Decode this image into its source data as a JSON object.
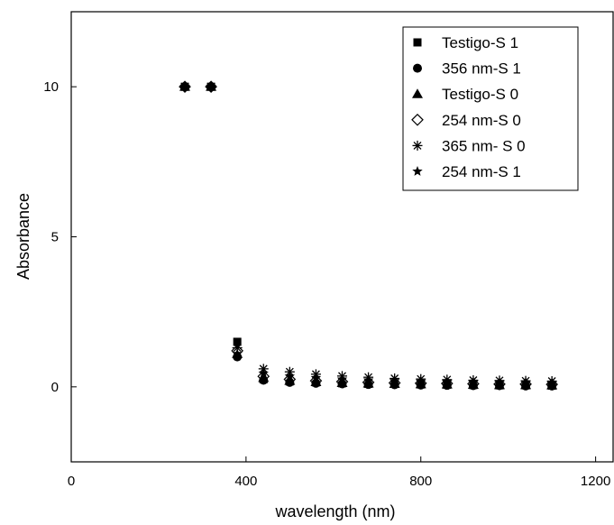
{
  "chart_data": {
    "type": "scatter",
    "title": "",
    "xlabel": "wavelength (nm)",
    "ylabel": "Absorbance",
    "xlim": [
      0,
      1240
    ],
    "ylim": [
      -2.5,
      12.5
    ],
    "xticks": [
      0,
      400,
      800,
      1200
    ],
    "yticks": [
      0,
      5,
      10
    ],
    "grid": false,
    "legend_position": "top-right",
    "series": [
      {
        "name": "Testigo-S 1",
        "marker": "filled-square",
        "x": [
          260,
          320,
          380,
          440,
          500,
          560,
          620,
          680,
          740,
          800,
          860,
          920,
          980,
          1040,
          1100
        ],
        "y": [
          10,
          10,
          1.5,
          0.25,
          0.18,
          0.15,
          0.12,
          0.1,
          0.1,
          0.08,
          0.07,
          0.06,
          0.05,
          0.05,
          0.04
        ]
      },
      {
        "name": "356 nm-S 1",
        "marker": "filled-circle",
        "x": [
          260,
          320,
          380,
          440,
          500,
          560,
          620,
          680,
          740,
          800,
          860,
          920,
          980,
          1040,
          1100
        ],
        "y": [
          10,
          10,
          1.0,
          0.22,
          0.15,
          0.12,
          0.1,
          0.08,
          0.07,
          0.06,
          0.05,
          0.04,
          0.04,
          0.03,
          0.03
        ]
      },
      {
        "name": "Testigo-S 0",
        "marker": "filled-triangle",
        "x": [
          260,
          320,
          380,
          440,
          500,
          560,
          620,
          680,
          740,
          800,
          860,
          920,
          980,
          1040,
          1100
        ],
        "y": [
          10,
          10,
          1.1,
          0.3,
          0.2,
          0.16,
          0.13,
          0.11,
          0.1,
          0.09,
          0.08,
          0.07,
          0.06,
          0.06,
          0.05
        ]
      },
      {
        "name": "254 nm-S 0",
        "marker": "open-diamond",
        "x": [
          260,
          320,
          380,
          440,
          500,
          560,
          620,
          680,
          740,
          800,
          860,
          920,
          980,
          1040,
          1100
        ],
        "y": [
          10,
          10,
          1.2,
          0.35,
          0.25,
          0.2,
          0.17,
          0.15,
          0.13,
          0.12,
          0.11,
          0.1,
          0.09,
          0.09,
          0.08
        ]
      },
      {
        "name": "365 nm- S 0",
        "marker": "asterisk",
        "x": [
          260,
          320,
          380,
          440,
          500,
          560,
          620,
          680,
          740,
          800,
          860,
          920,
          980,
          1040,
          1100
        ],
        "y": [
          10,
          10,
          1.3,
          0.6,
          0.5,
          0.42,
          0.36,
          0.32,
          0.28,
          0.26,
          0.24,
          0.22,
          0.21,
          0.2,
          0.19
        ]
      },
      {
        "name": "254 nm-S 1",
        "marker": "filled-star",
        "x": [
          260,
          320,
          380,
          440,
          500,
          560,
          620,
          680,
          740,
          800,
          860,
          920,
          980,
          1040,
          1100
        ],
        "y": [
          10,
          10,
          1.1,
          0.45,
          0.35,
          0.3,
          0.25,
          0.22,
          0.2,
          0.18,
          0.16,
          0.15,
          0.14,
          0.13,
          0.12
        ]
      }
    ]
  }
}
